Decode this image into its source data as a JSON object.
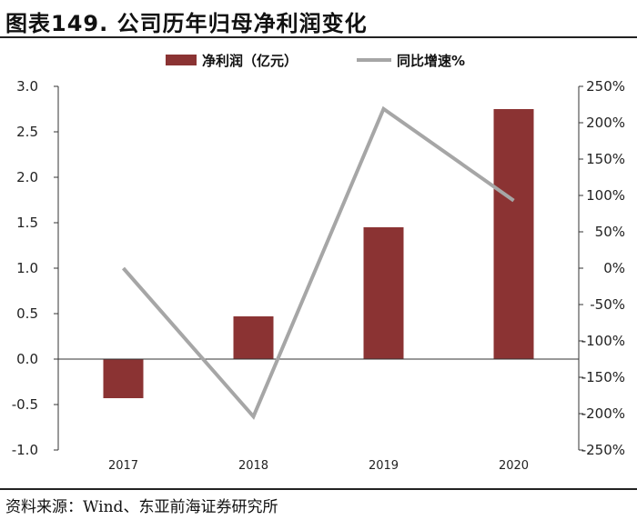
{
  "title": "图表149. 公司历年归母净利润变化",
  "source": "资料来源：Wind、东亚前海证券研究所",
  "colors": {
    "bar": "#8b3333",
    "line": "#a6a6a6",
    "axis": "#333333"
  },
  "chart_data": {
    "type": "bar",
    "categories": [
      "2017",
      "2018",
      "2019",
      "2020"
    ],
    "series": [
      {
        "name": "净利润（亿元）",
        "type": "bar",
        "axis": "left",
        "values": [
          -0.43,
          0.47,
          1.45,
          2.75
        ]
      },
      {
        "name": "同比增速%",
        "type": "line",
        "axis": "right",
        "values": [
          0,
          -204,
          219,
          93
        ]
      }
    ],
    "ylim_left": [
      -1.0,
      3.0
    ],
    "yticks_left": [
      "3.0",
      "2.5",
      "2.0",
      "1.5",
      "1.0",
      "0.5",
      "0.0",
      "-0.5",
      "-1.0"
    ],
    "ylim_right": [
      -250,
      250
    ],
    "yticks_right": [
      "250%",
      "200%",
      "150%",
      "100%",
      "50%",
      "0%",
      "-50%",
      "-100%",
      "-150%",
      "-200%",
      "-250%"
    ],
    "legend_position": "top",
    "grid": false
  }
}
